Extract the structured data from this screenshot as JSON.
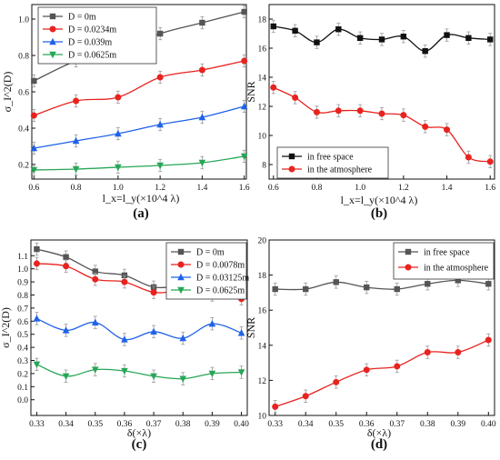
{
  "figure": {
    "panel_labels": [
      "(a)",
      "(b)",
      "(c)",
      "(d)"
    ]
  },
  "chart_data": [
    {
      "id": "a",
      "type": "line",
      "xlabel": "l_x=l_y(×10^4 λ)",
      "ylabel": "σ_I^2(D)",
      "xlim": [
        0.59,
        1.61
      ],
      "ylim": [
        0.12,
        1.08
      ],
      "xticks": [
        0.6,
        0.8,
        1.0,
        1.2,
        1.4,
        1.6
      ],
      "yticks": [
        0.2,
        0.4,
        0.6,
        0.8,
        1.0
      ],
      "grid": false,
      "legend_position": "top-left",
      "x": [
        0.6,
        0.8,
        1.0,
        1.2,
        1.4,
        1.6
      ],
      "series": [
        {
          "name": "D = 0m",
          "color": "#555555",
          "marker": "square",
          "values": [
            0.66,
            0.77,
            0.83,
            0.92,
            0.98,
            1.04
          ]
        },
        {
          "name": "D = 0.0234m",
          "color": "#e8231f",
          "marker": "circle",
          "values": [
            0.47,
            0.55,
            0.57,
            0.68,
            0.72,
            0.77
          ]
        },
        {
          "name": "D = 0.039m",
          "color": "#1f62e8",
          "marker": "triangle-up",
          "values": [
            0.29,
            0.33,
            0.37,
            0.42,
            0.46,
            0.52
          ]
        },
        {
          "name": "D = 0.0625m",
          "color": "#27a657",
          "marker": "triangle-down",
          "values": [
            0.17,
            0.175,
            0.185,
            0.195,
            0.21,
            0.245
          ]
        }
      ]
    },
    {
      "id": "b",
      "type": "line",
      "xlabel": "l_x=l_y(×10^4 λ)",
      "ylabel": "SNR",
      "xlim": [
        0.58,
        1.62
      ],
      "ylim": [
        7,
        19
      ],
      "xticks": [
        0.6,
        0.8,
        1.0,
        1.2,
        1.4,
        1.6
      ],
      "yticks": [
        8,
        10,
        12,
        14,
        16,
        18
      ],
      "grid": false,
      "legend_position": "bottom-left",
      "x": [
        0.6,
        0.7,
        0.8,
        0.9,
        1.0,
        1.1,
        1.2,
        1.3,
        1.4,
        1.5,
        1.6
      ],
      "series": [
        {
          "name": "in free space",
          "color": "#111111",
          "marker": "square",
          "values": [
            17.5,
            17.2,
            16.4,
            17.3,
            16.7,
            16.6,
            16.8,
            15.8,
            16.9,
            16.7,
            16.6
          ]
        },
        {
          "name": "in the atmosphere",
          "color": "#e8231f",
          "marker": "circle",
          "values": [
            13.3,
            12.6,
            11.6,
            11.7,
            11.7,
            11.5,
            11.4,
            10.6,
            10.4,
            8.5,
            8.2
          ]
        }
      ]
    },
    {
      "id": "c",
      "type": "line",
      "xlabel": "δ(×λ)",
      "ylabel": "σ_I^2(D)",
      "xlim": [
        0.328,
        0.402
      ],
      "ylim": [
        -0.12,
        1.22
      ],
      "xticks": [
        0.33,
        0.34,
        0.35,
        0.36,
        0.37,
        0.38,
        0.39,
        0.4
      ],
      "yticks": [
        0.0,
        0.1,
        0.2,
        0.3,
        0.4,
        0.5,
        0.6,
        0.7,
        0.8,
        0.9,
        1.0,
        1.1
      ],
      "grid": false,
      "legend_position": "top-right",
      "x": [
        0.33,
        0.34,
        0.35,
        0.36,
        0.37,
        0.38,
        0.39,
        0.4
      ],
      "series": [
        {
          "name": "D = 0m",
          "color": "#555555",
          "marker": "square",
          "values": [
            1.15,
            1.09,
            0.98,
            0.95,
            0.86,
            0.87,
            0.87,
            0.81
          ]
        },
        {
          "name": "D = 0.0078m",
          "color": "#e8231f",
          "marker": "circle",
          "values": [
            1.04,
            1.02,
            0.92,
            0.9,
            0.82,
            0.83,
            0.8,
            0.77
          ]
        },
        {
          "name": "D = 0.03125m",
          "color": "#1f62e8",
          "marker": "triangle-up",
          "values": [
            0.62,
            0.53,
            0.59,
            0.46,
            0.52,
            0.47,
            0.58,
            0.51
          ]
        },
        {
          "name": "D = 0.0625m",
          "color": "#27a657",
          "marker": "triangle-down",
          "values": [
            0.27,
            0.18,
            0.23,
            0.22,
            0.18,
            0.16,
            0.2,
            0.21
          ]
        }
      ]
    },
    {
      "id": "d",
      "type": "line",
      "xlabel": "δ(×λ)",
      "ylabel": "SNR",
      "xlim": [
        0.328,
        0.402
      ],
      "ylim": [
        10,
        20
      ],
      "xticks": [
        0.33,
        0.34,
        0.35,
        0.36,
        0.37,
        0.38,
        0.39,
        0.4
      ],
      "yticks": [
        10,
        12,
        14,
        16,
        18,
        20
      ],
      "grid": false,
      "legend_position": "top-right",
      "x": [
        0.33,
        0.34,
        0.35,
        0.36,
        0.37,
        0.38,
        0.39,
        0.4
      ],
      "series": [
        {
          "name": "in free space",
          "color": "#555555",
          "marker": "square",
          "values": [
            17.2,
            17.2,
            17.6,
            17.3,
            17.2,
            17.5,
            17.7,
            17.5
          ]
        },
        {
          "name": "in the atmosphere",
          "color": "#e8231f",
          "marker": "circle",
          "values": [
            10.5,
            11.1,
            11.9,
            12.6,
            12.8,
            13.6,
            13.6,
            14.3
          ]
        }
      ]
    }
  ]
}
